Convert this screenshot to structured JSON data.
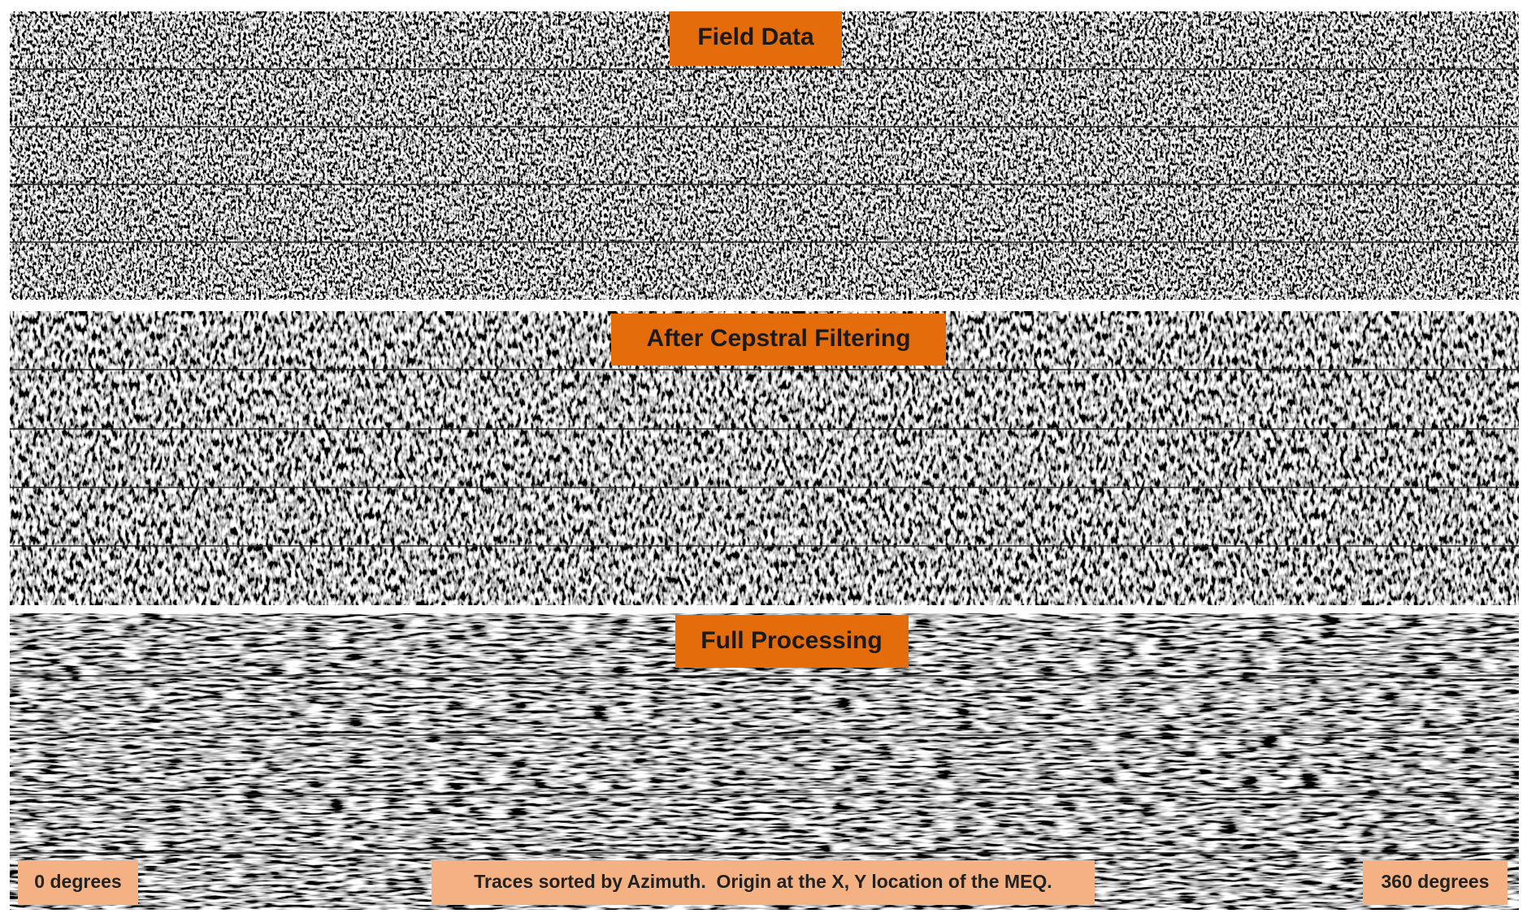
{
  "panels": [
    {
      "title": "Field Data"
    },
    {
      "title": "After Cepstral Filtering"
    },
    {
      "title": "Full Processing"
    }
  ],
  "annotations": {
    "start": "0 degrees",
    "note": "Traces sorted by Azimuth.  Origin at the X, Y location of the MEQ.",
    "end": "360 degrees"
  }
}
